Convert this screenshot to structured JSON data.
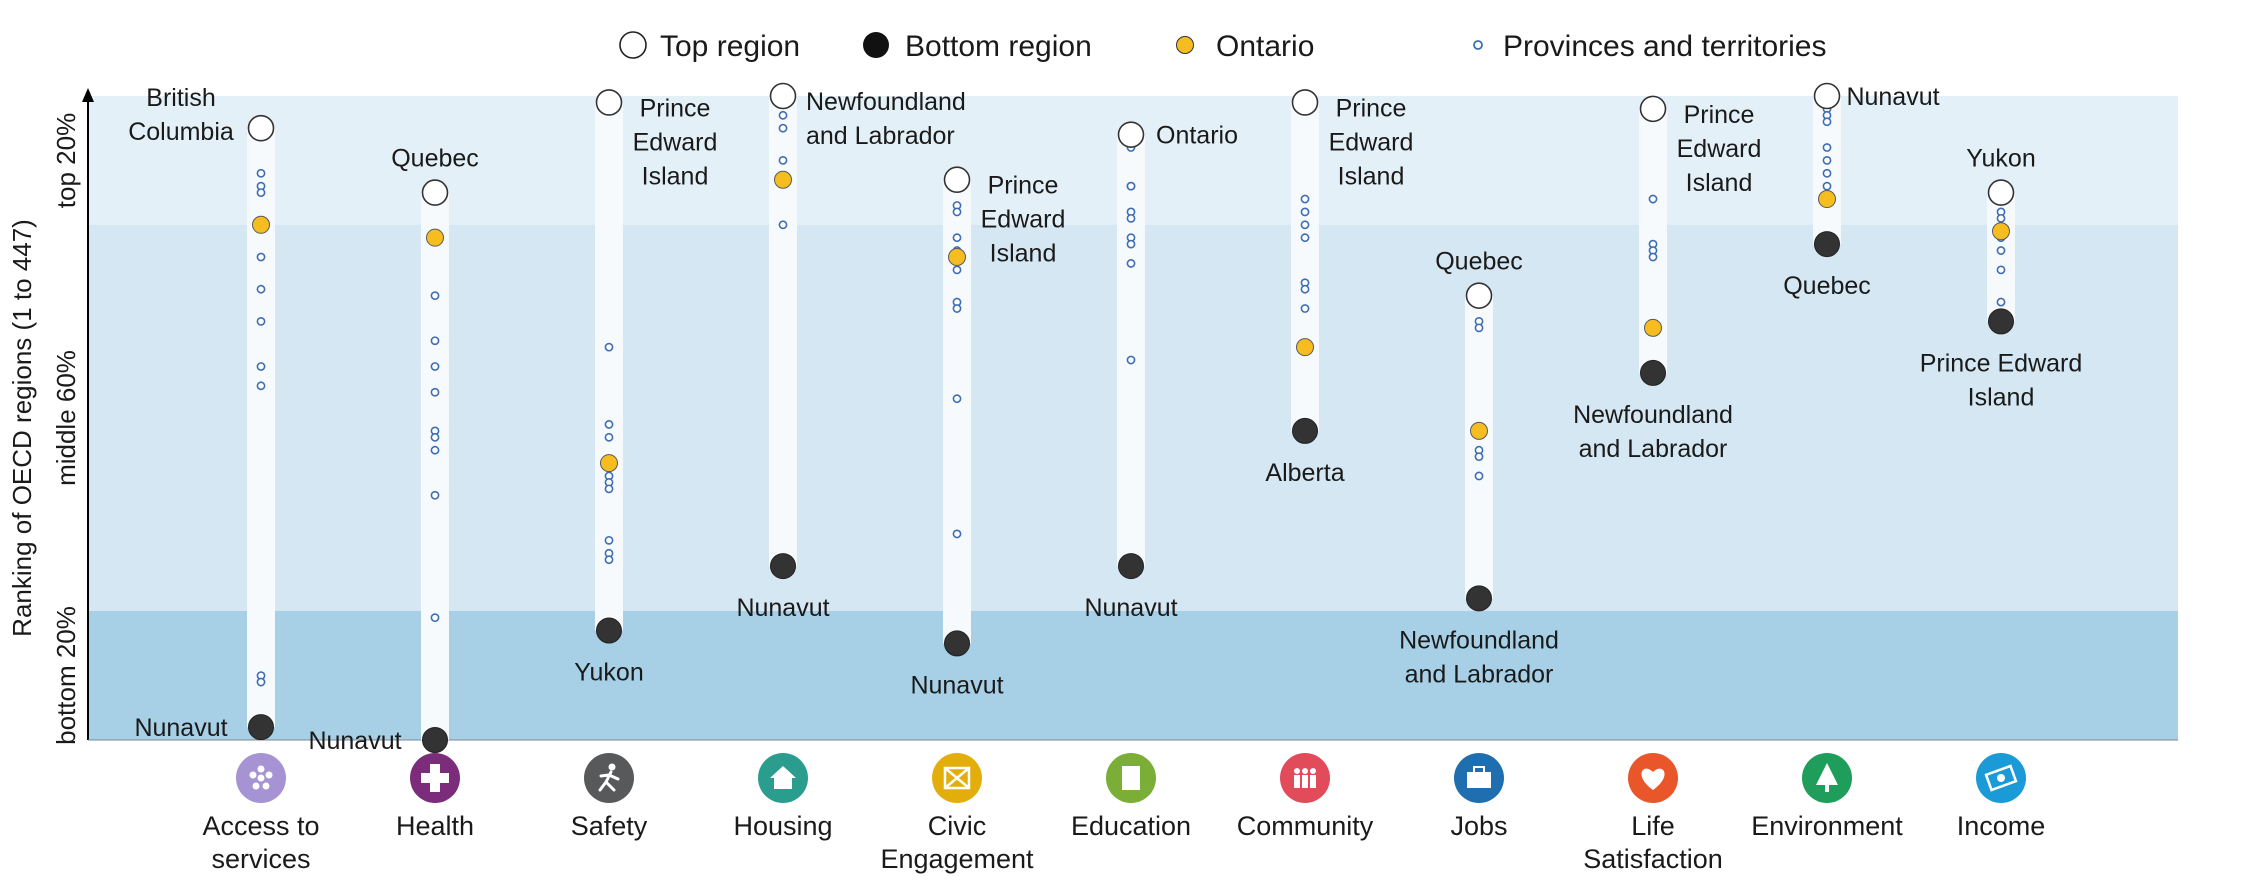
{
  "chart_data": {
    "type": "scatter",
    "ylabel": "Ranking of OECD regions (1 to 447)",
    "band_labels": [
      "top 20%",
      "middle 60%",
      "bottom 20%"
    ],
    "legend": {
      "top": "Top region",
      "bottom": "Bottom region",
      "ontario": "Ontario",
      "others": "Provinces and territories"
    },
    "colors": {
      "band_top": "#e4f0f8",
      "band_middle": "#d4e7f2",
      "band_bottom": "#a7d0e7",
      "column": "#f6fafd",
      "ontario": "#f5bd1f",
      "bottom_marker": "#333333",
      "others_marker": "#3d6db4"
    },
    "ylim": [
      0,
      100
    ],
    "categories": [
      {
        "name": "Access to services",
        "label_lines": [
          "Access to",
          "services"
        ],
        "icon": "services-icon",
        "icon_color": "#a593d3",
        "top": 95,
        "bottom": 2,
        "ontario": 80,
        "others": [
          88,
          86,
          85,
          75,
          70,
          65,
          58,
          55,
          10,
          9
        ],
        "top_label": [
          "British",
          "Columbia"
        ],
        "top_side": "left",
        "bottom_label": [
          "Nunavut"
        ],
        "bottom_side": "left"
      },
      {
        "name": "Health",
        "label_lines": [
          "Health"
        ],
        "icon": "health-cross-icon",
        "icon_color": "#7b2d7b",
        "top": 85,
        "bottom": 0,
        "ontario": 78,
        "others": [
          69,
          62,
          58,
          54,
          48,
          47,
          45,
          38,
          19
        ],
        "top_label": [
          "Quebec"
        ],
        "top_side": "above",
        "bottom_label": [
          "Nunavut"
        ],
        "bottom_side": "left"
      },
      {
        "name": "Safety",
        "label_lines": [
          "Safety"
        ],
        "icon": "running-person-icon",
        "icon_color": "#58595b",
        "top": 99,
        "bottom": 17,
        "ontario": 43,
        "others": [
          61,
          49,
          47,
          41,
          40,
          39,
          31,
          29,
          28
        ],
        "top_label": [
          "Prince",
          "Edward",
          "Island"
        ],
        "top_side": "right",
        "bottom_label": [
          "Yukon"
        ],
        "bottom_side": "below"
      },
      {
        "name": "Housing",
        "label_lines": [
          "Housing"
        ],
        "icon": "house-icon",
        "icon_color": "#2a9d8f",
        "top": 100,
        "bottom": 27,
        "ontario": 87,
        "others": [
          97,
          95,
          90,
          80
        ],
        "top_label": [
          "Newfoundland",
          "and Labrador"
        ],
        "top_side": "right",
        "bottom_label": [
          "Nunavut"
        ],
        "bottom_side": "below"
      },
      {
        "name": "Civic Engagement",
        "label_lines": [
          "Civic",
          "Engagement"
        ],
        "icon": "ballot-box-icon",
        "icon_color": "#e3ae0c",
        "top": 87,
        "bottom": 15,
        "ontario": 75,
        "others": [
          83,
          82,
          78,
          76,
          73,
          68,
          67,
          53,
          32
        ],
        "top_label": [
          "Prince",
          "Edward",
          "Island"
        ],
        "top_side": "right",
        "bottom_label": [
          "Nunavut"
        ],
        "bottom_side": "below"
      },
      {
        "name": "Education",
        "label_lines": [
          "Education"
        ],
        "icon": "book-icon",
        "icon_color": "#7bae37",
        "top": 94,
        "bottom": 27,
        "ontario": 94,
        "others": [
          92,
          86,
          86,
          82,
          81,
          78,
          77,
          74,
          59
        ],
        "top_label": [
          "Ontario"
        ],
        "top_side": "right",
        "bottom_label": [
          "Nunavut"
        ],
        "bottom_side": "below"
      },
      {
        "name": "Community",
        "label_lines": [
          "Community"
        ],
        "icon": "people-icon",
        "icon_color": "#e14b5a",
        "top": 99,
        "bottom": 48,
        "ontario": 61,
        "others": [
          84,
          82,
          80,
          78,
          71,
          70,
          67
        ],
        "top_label": [
          "Prince",
          "Edward",
          "Island"
        ],
        "top_side": "right",
        "bottom_label": [
          "Alberta"
        ],
        "bottom_side": "below"
      },
      {
        "name": "Jobs",
        "label_lines": [
          "Jobs"
        ],
        "icon": "briefcase-icon",
        "icon_color": "#1f6fb0",
        "top": 69,
        "bottom": 22,
        "ontario": 48,
        "others": [
          65,
          64,
          45,
          44,
          41
        ],
        "top_label": [
          "Quebec"
        ],
        "top_side": "above",
        "bottom_label": [
          "Newfoundland",
          "and Labrador"
        ],
        "bottom_side": "below"
      },
      {
        "name": "Life Satisfaction",
        "label_lines": [
          "Life",
          "Satisfaction"
        ],
        "icon": "heart-icon",
        "icon_color": "#e8562a",
        "top": 98,
        "bottom": 57,
        "ontario": 64,
        "others": [
          84,
          77,
          76,
          75
        ],
        "top_label": [
          "Prince",
          "Edward",
          "Island"
        ],
        "top_side": "right",
        "bottom_label": [
          "Newfoundland",
          "and Labrador"
        ],
        "bottom_side": "below"
      },
      {
        "name": "Environment",
        "label_lines": [
          "Environment"
        ],
        "icon": "tree-icon",
        "icon_color": "#1e9e5a",
        "top": 100,
        "bottom": 77,
        "ontario": 84,
        "others": [
          98,
          97,
          96,
          92,
          90,
          88,
          86
        ],
        "top_label": [
          "Nunavut"
        ],
        "top_side": "right",
        "bottom_label": [
          "Quebec"
        ],
        "bottom_side": "below"
      },
      {
        "name": "Income",
        "label_lines": [
          "Income"
        ],
        "icon": "money-icon",
        "icon_color": "#1a9ad6",
        "top": 85,
        "bottom": 65,
        "ontario": 79,
        "others": [
          82,
          81,
          78,
          76,
          73,
          68
        ],
        "top_label": [
          "Yukon"
        ],
        "top_side": "above",
        "bottom_label": [
          "Prince Edward",
          "Island"
        ],
        "bottom_side": "below"
      }
    ]
  }
}
